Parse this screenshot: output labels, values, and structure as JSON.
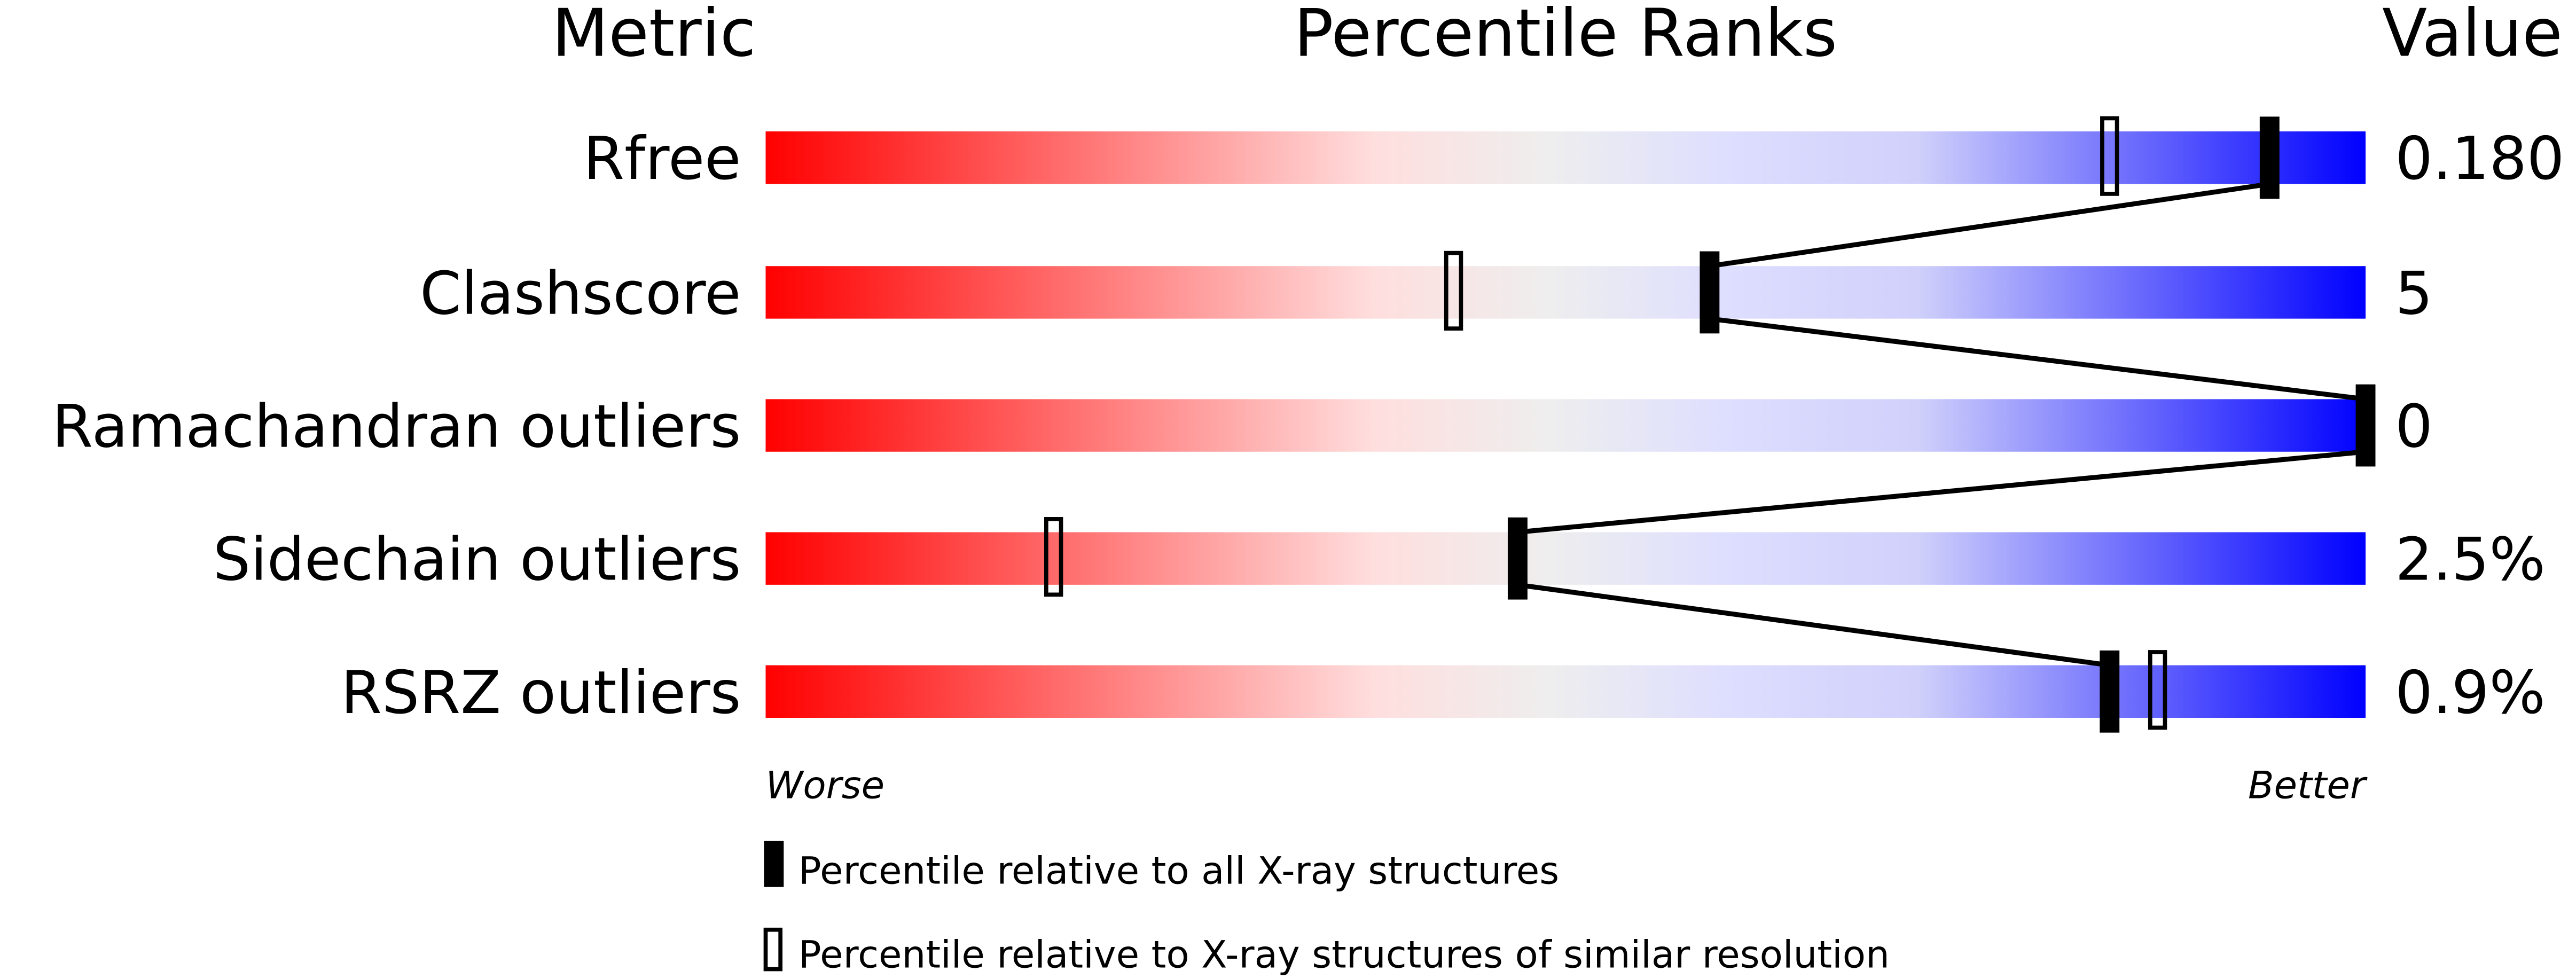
{
  "chart_data": {
    "type": "percentile-slider",
    "headers": {
      "metric": "Metric",
      "ranks": "Percentile Ranks",
      "value": "Value"
    },
    "xlim": [
      0,
      100
    ],
    "gradient_colors": [
      "#ff0000",
      "#ffdede",
      "#eeeeee",
      "#dedeff",
      "#0000ff"
    ],
    "rows": [
      {
        "metric": "Rfree",
        "value": "0.180",
        "percentile_all": 94,
        "percentile_similar": 84
      },
      {
        "metric": "Clashscore",
        "value": "5",
        "percentile_all": 59,
        "percentile_similar": 43
      },
      {
        "metric": "Ramachandran outliers",
        "value": "0",
        "percentile_all": 100,
        "percentile_similar": null
      },
      {
        "metric": "Sidechain outliers",
        "value": "2.5%",
        "percentile_all": 47,
        "percentile_similar": 18
      },
      {
        "metric": "RSRZ outliers",
        "value": "0.9%",
        "percentile_all": 84,
        "percentile_similar": 87
      }
    ],
    "axis": {
      "left": "Worse",
      "right": "Better"
    },
    "legend": {
      "filled": "Percentile relative to all X-ray structures",
      "open": "Percentile relative to X-ray structures of similar resolution"
    }
  }
}
